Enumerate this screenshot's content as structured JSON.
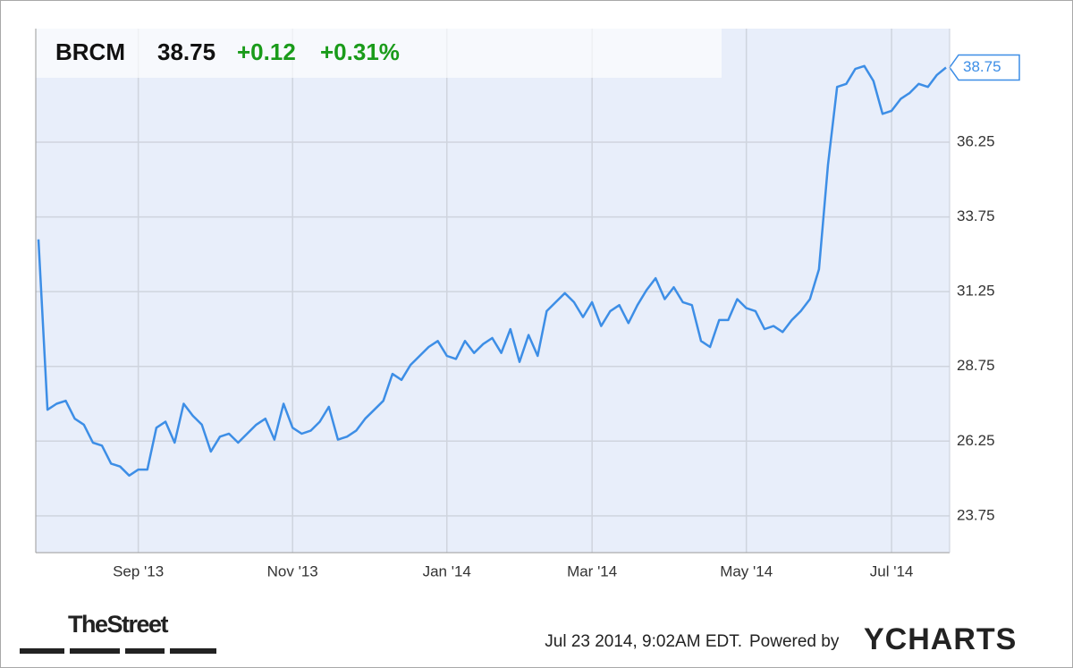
{
  "chart_data": {
    "type": "line",
    "header": {
      "ticker": "BRCM",
      "change": "+0.12",
      "change_pct": "+0.31%"
    },
    "footer": {
      "timestamp": "Jul 23 2014, 9:02AM EDT.",
      "powered_by": "Powered by",
      "brand": "YCHARTS",
      "publisher": "TheStreet"
    },
    "categories": [
      null,
      null,
      null,
      null,
      null,
      null,
      null,
      null,
      null,
      null,
      null,
      "Sep '13",
      null,
      null,
      null,
      null,
      null,
      null,
      null,
      null,
      null,
      null,
      null,
      null,
      null,
      null,
      null,
      null,
      "Nov '13",
      null,
      null,
      null,
      null,
      null,
      null,
      null,
      null,
      null,
      null,
      null,
      null,
      null,
      null,
      null,
      null,
      "Jan '14",
      null,
      null,
      null,
      null,
      null,
      null,
      null,
      null,
      null,
      null,
      null,
      null,
      null,
      null,
      null,
      "Mar '14",
      null,
      null,
      null,
      null,
      null,
      null,
      null,
      null,
      null,
      null,
      null,
      null,
      null,
      null,
      null,
      null,
      "May '14",
      null,
      null,
      null,
      null,
      null,
      null,
      null,
      null,
      null,
      null,
      null,
      null,
      null,
      null,
      null,
      "Jul '14",
      null,
      null,
      null,
      null,
      null,
      null
    ],
    "series": [
      {
        "name": "BRCM",
        "color": "#3d8ee6",
        "values": [
          33.0,
          27.3,
          27.5,
          27.6,
          27.0,
          26.8,
          26.2,
          26.1,
          25.5,
          25.4,
          25.1,
          25.3,
          25.3,
          26.7,
          26.9,
          26.2,
          27.5,
          27.1,
          26.8,
          25.9,
          26.4,
          26.5,
          26.2,
          26.5,
          26.8,
          27.0,
          26.3,
          27.5,
          26.7,
          26.5,
          26.6,
          26.9,
          27.4,
          26.3,
          26.4,
          26.6,
          27.0,
          27.3,
          27.6,
          28.5,
          28.3,
          28.8,
          29.1,
          29.4,
          29.6,
          29.1,
          29.0,
          29.6,
          29.2,
          29.5,
          29.7,
          29.2,
          30.0,
          28.9,
          29.8,
          29.1,
          30.6,
          30.9,
          31.2,
          30.9,
          30.4,
          30.9,
          30.1,
          30.6,
          30.8,
          30.2,
          30.8,
          31.3,
          31.7,
          31.0,
          31.4,
          30.9,
          30.8,
          29.6,
          29.4,
          30.3,
          30.3,
          31.0,
          30.7,
          30.6,
          30.0,
          30.1,
          29.9,
          30.3,
          30.6,
          31.0,
          32.0,
          35.5,
          38.1,
          38.2,
          38.7,
          38.8,
          38.3,
          37.2,
          37.3,
          37.7,
          37.9,
          38.2,
          38.1,
          38.5,
          38.75
        ]
      }
    ],
    "ylim": [
      22.52,
      40.05
    ],
    "yticks": [
      23.75,
      26.25,
      28.75,
      31.25,
      33.75,
      36.25
    ],
    "grid": true
  }
}
